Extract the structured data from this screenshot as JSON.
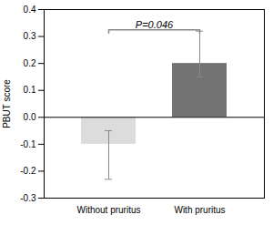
{
  "chart_data": {
    "type": "bar",
    "categories": [
      "Without pruritus",
      "With pruritus"
    ],
    "values": [
      -0.1,
      0.2
    ],
    "errors_lower": [
      0.13,
      0.05
    ],
    "errors_upper": [
      0.05,
      0.12
    ],
    "colors": [
      "#dcdcdc",
      "#737373"
    ],
    "ylabel": "PBUT score",
    "ylim": [
      -0.3,
      0.4
    ],
    "yticks": [
      -0.3,
      -0.2,
      -0.1,
      {
        "value": 0.0,
        "label": "0.0"
      },
      0.1,
      0.2,
      0.3,
      0.4
    ],
    "annotations": [
      {
        "text": "P=0.046",
        "from": "Without pruritus",
        "to": "With pruritus",
        "y": 0.325,
        "text_y": 0.33
      }
    ]
  }
}
